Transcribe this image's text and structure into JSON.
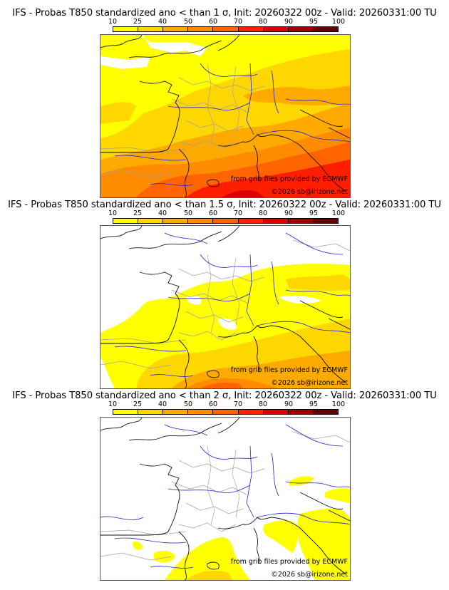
{
  "colorbar": {
    "ticks": [
      "10",
      "25",
      "40",
      "50",
      "60",
      "70",
      "80",
      "90",
      "95",
      "100"
    ],
    "colors": [
      "#ffff00",
      "#ffd700",
      "#ffaa00",
      "#ff8c00",
      "#ff6400",
      "#ff1e00",
      "#dc0000",
      "#a00000",
      "#640000"
    ]
  },
  "style": {
    "coast": "#000000",
    "river": "#2222dd",
    "border": "#a0a0a0"
  },
  "panels": [
    {
      "title": "IFS - Probas T850  standardized ano < than 1 σ, Init: 20260322 00z - Valid: 20260331:00 TU",
      "threshold": "1 σ",
      "credit_source": "from grib files provided by ECMWF",
      "credit_copyright": "©2026 sb@irizone.net"
    },
    {
      "title": "IFS - Probas T850  standardized ano < than 1.5 σ, Init: 20260322 00z - Valid: 20260331:00 TU",
      "threshold": "1.5 σ",
      "credit_source": "from grib files provided by ECMWF",
      "credit_copyright": "©2026 sb@irizone.net"
    },
    {
      "title": "IFS - Probas T850  standardized ano < than 2 σ, Init: 20260322 00z - Valid: 20260331:00 TU",
      "threshold": "2 σ",
      "credit_source": "from grib files provided by ECMWF",
      "credit_copyright": "©2026 sb@irizone.net"
    }
  ]
}
